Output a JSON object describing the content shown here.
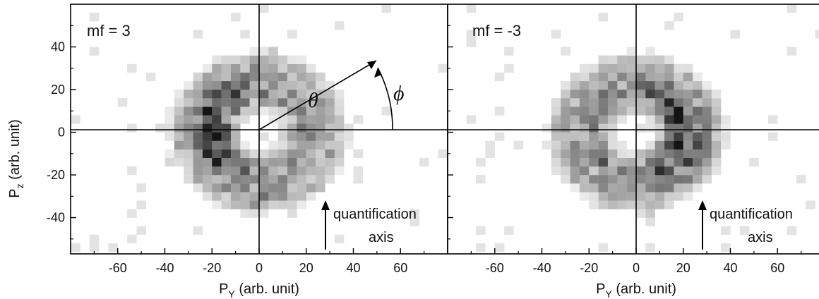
{
  "chart_data": {
    "type": "heatmap",
    "colormap": "white-to-black (counts)",
    "shared_ylabel_main": "P",
    "shared_ylabel_sub": "z",
    "shared_ylabel_rest": " (arb. unit)",
    "panels": [
      {
        "label": "mf = 3",
        "xlabel_main": "P",
        "xlabel_sub": "Y",
        "xlabel_rest": " (arb. unit)",
        "xlim": [
          -80,
          80
        ],
        "ylim": [
          -57,
          60
        ],
        "xticks": [
          -60,
          -40,
          -20,
          0,
          20,
          40,
          60
        ],
        "yticks": [
          -40,
          -20,
          0,
          20,
          40
        ],
        "ring": {
          "center": [
            0,
            0
          ],
          "radius": 20,
          "dense_side": "left",
          "dense_angle_deg": 180
        },
        "annotation_theta": "θ",
        "annotation_phi": "ϕ",
        "annotation_text_1": "quantification",
        "annotation_text_2": "axis"
      },
      {
        "label": "mf = -3",
        "xlabel_main": "P",
        "xlabel_sub": "Y",
        "xlabel_rest": " (arb. unit)",
        "xlim": [
          -80,
          80
        ],
        "ylim": [
          -57,
          60
        ],
        "xticks": [
          -60,
          -40,
          -20,
          0,
          20,
          40,
          60
        ],
        "yticks": [
          -40,
          -20,
          0,
          20,
          40
        ],
        "ring": {
          "center": [
            0,
            0
          ],
          "radius": 20,
          "dense_side": "right",
          "dense_angle_deg": 0
        },
        "annotation_text_1": "quantification",
        "annotation_text_2": "axis"
      }
    ]
  }
}
